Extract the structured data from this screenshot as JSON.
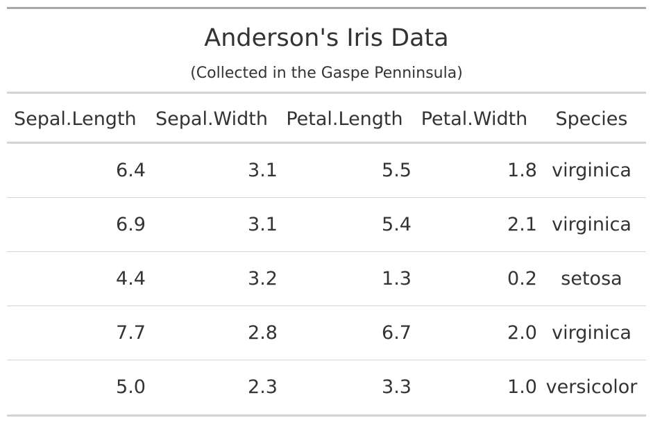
{
  "table": {
    "title": "Anderson's Iris Data",
    "subtitle": "(Collected in the Gaspe Penninsula)",
    "columns": [
      "Sepal.Length",
      "Sepal.Width",
      "Petal.Length",
      "Petal.Width",
      "Species"
    ],
    "rows": [
      [
        "6.4",
        "3.1",
        "5.5",
        "1.8",
        "virginica"
      ],
      [
        "6.9",
        "3.1",
        "5.4",
        "2.1",
        "virginica"
      ],
      [
        "4.4",
        "3.2",
        "1.3",
        "0.2",
        "setosa"
      ],
      [
        "7.7",
        "2.8",
        "6.7",
        "2.0",
        "virginica"
      ],
      [
        "5.0",
        "2.3",
        "3.3",
        "1.0",
        "versicolor"
      ]
    ]
  },
  "colors": {
    "text": "#333333",
    "top_rule": "#a8a8a8",
    "rule": "#d3d3d3",
    "background": "#ffffff"
  }
}
